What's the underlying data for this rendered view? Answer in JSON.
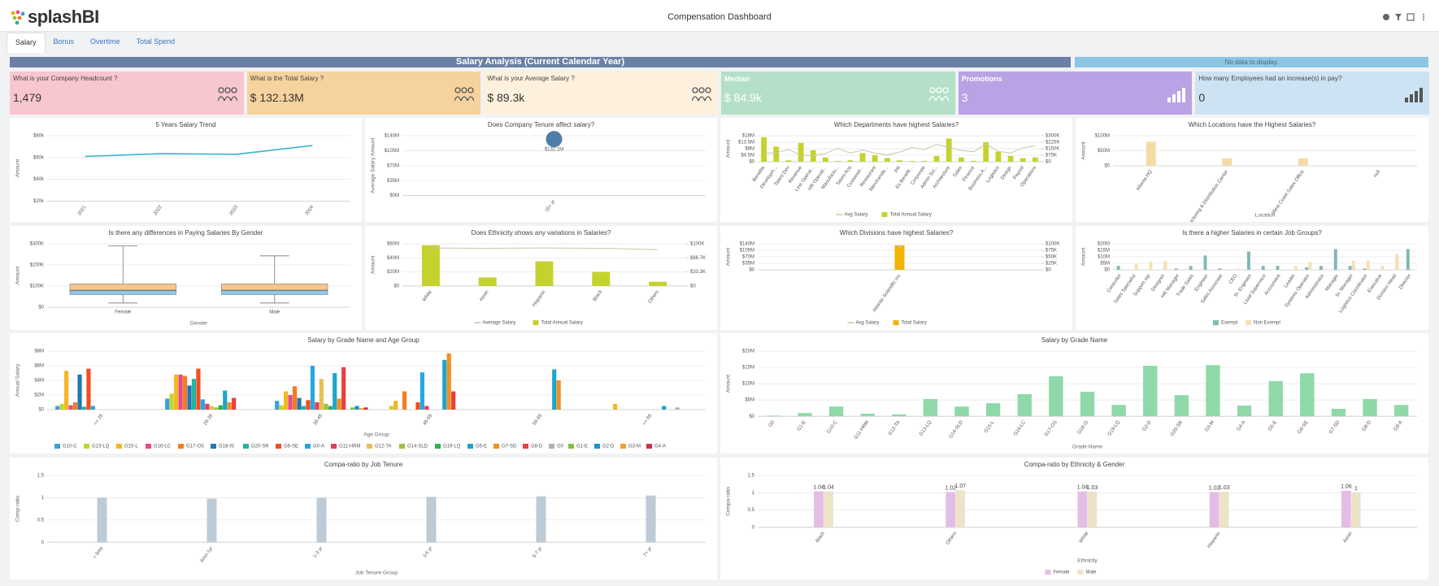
{
  "header": {
    "logo": "splashBI",
    "title": "Compensation Dashboard"
  },
  "tabs": [
    "Salary",
    "Bonus",
    "Overtime",
    "Total Spend"
  ],
  "banner": {
    "title": "Salary Analysis (Current Calendar Year)",
    "note": "No data to display."
  },
  "kpis": [
    {
      "label": "What is your Company Headcount ?",
      "value": "1,479",
      "color": "#f8c6cf"
    },
    {
      "label": "What is the Total Salary ?",
      "value": "$ 132.13M",
      "color": "#f6d39e"
    },
    {
      "label": "What is your Average Salary ?",
      "value": "$ 89.3k",
      "color": "#fdf1dd"
    },
    {
      "label": "Median",
      "value": "$ 84.9k",
      "color": "#b4e0c7"
    },
    {
      "label": "Promotions",
      "value": "3",
      "color": "#b9a3e4"
    },
    {
      "label": "How many Employees had an increase(s) in pay?",
      "value": "0",
      "color": "#cde3f3"
    }
  ],
  "chart_data": [
    {
      "type": "line",
      "title": "5 Years Salary Trend",
      "ylabel": "Amount",
      "categories": [
        "2021",
        "2022",
        "2023",
        "2024"
      ],
      "values": [
        61,
        63.5,
        63,
        71
      ],
      "color": "#3bb3d0",
      "ylim": [
        20,
        80
      ],
      "yticks": [
        {
          "value": 20,
          "label": "$20k"
        },
        {
          "value": 40,
          "label": "$40k"
        },
        {
          "value": 60,
          "label": "$60k"
        },
        {
          "value": 80,
          "label": "$80k"
        }
      ],
      "grid": true
    },
    {
      "type": "bubble",
      "title": "Does Company Tenure affect salary?",
      "ylabel": "Average Salary Amount",
      "categories": [
        "15+ yr"
      ],
      "values": [
        132.13
      ],
      "value_labels": [
        "$132.1M"
      ],
      "color": "#4f7ea8",
      "ylim": [
        0,
        140
      ],
      "yticks": [
        {
          "value": 0,
          "label": "$0M"
        },
        {
          "value": 35,
          "label": "$35M"
        },
        {
          "value": 70,
          "label": "$70M"
        },
        {
          "value": 105,
          "label": "$105M"
        },
        {
          "value": 140,
          "label": "$140M"
        }
      ],
      "grid": true
    },
    {
      "type": "combo",
      "title": "Which Departments have highest Salaries?",
      "ylabel": "Amount",
      "legend": true,
      "categories": [
        "Benefits",
        "Developm...",
        "Talent Dev",
        "Revenue",
        "Line Operat...",
        "HR Operati...",
        "Manufactu...",
        "Talent Acq",
        "Customer...",
        "Restaurant",
        "Merchandis...",
        "PR",
        "Ex Benefit...",
        "Corporate",
        "Admin Sci...",
        "Architecture",
        "Sales",
        "Finance",
        "Business A...",
        "Logistics",
        "Design",
        "Payroll",
        "Operations"
      ],
      "series": [
        {
          "name": "Avg Salary",
          "kind": "line",
          "axis": "y2",
          "color": "#c9c6a6",
          "values": [
            95,
            105,
            140,
            75,
            70,
            95,
            155,
            100,
            135,
            100,
            80,
            110,
            165,
            140,
            200,
            165,
            130,
            115,
            205,
            120,
            100,
            160,
            185
          ]
        },
        {
          "name": "Total Annual Salary",
          "kind": "bar",
          "color": "#c5d22e",
          "values": [
            17,
            10.5,
            1,
            13,
            8,
            3,
            0.5,
            1,
            6,
            4.5,
            2.5,
            1,
            0.5,
            0.5,
            4,
            16,
            3,
            0.6,
            13.5,
            7,
            4,
            2.5,
            3
          ]
        }
      ],
      "ylim": [
        0,
        18
      ],
      "yticks": [
        {
          "value": 0,
          "label": "$0"
        },
        {
          "value": 4.5,
          "label": "$4.5M"
        },
        {
          "value": 9,
          "label": "$9M"
        },
        {
          "value": 13.5,
          "label": "$13.5M"
        },
        {
          "value": 18,
          "label": "$18M"
        }
      ],
      "y2lim": [
        0,
        300
      ],
      "y2ticks": [
        {
          "value": 0,
          "label": "$0"
        },
        {
          "value": 75,
          "label": "$75K"
        },
        {
          "value": 150,
          "label": "$150K"
        },
        {
          "value": 225,
          "label": "$225K"
        },
        {
          "value": 300,
          "label": "$300K"
        }
      ],
      "grid": true
    },
    {
      "type": "bar",
      "title": "Which Locations have the Highest Salaries?",
      "ylabel": "Amount",
      "xlabel": "Location",
      "categories": [
        "Atlanta HQ",
        "Manufacturing & Distribution Center",
        "West Coast Sales Office",
        "null"
      ],
      "values": [
        80,
        25,
        25,
        0
      ],
      "color": "#f3dba6",
      "ylim": [
        0,
        100
      ],
      "yticks": [
        {
          "value": 0,
          "label": "$0"
        },
        {
          "value": 50,
          "label": "$50M"
        },
        {
          "value": 100,
          "label": "$100M"
        }
      ],
      "grid": true
    },
    {
      "type": "box",
      "title": "Is there any differences in Paying Salaries By Gender",
      "ylabel": "Amount",
      "xlabel": "Gender",
      "categories": [
        "Female",
        "Male"
      ],
      "boxes": [
        {
          "min": 20,
          "q1": 60,
          "median": 80,
          "q3": 110,
          "max": 290
        },
        {
          "min": 20,
          "q1": 60,
          "median": 80,
          "q3": 110,
          "max": 243
        }
      ],
      "colors": [
        "#8ec9e8",
        "#f6c68f"
      ],
      "ylim": [
        0,
        300
      ],
      "yticks": [
        {
          "value": 0,
          "label": "$0"
        },
        {
          "value": 100,
          "label": "$100K"
        },
        {
          "value": 200,
          "label": "$200K"
        },
        {
          "value": 300,
          "label": "$300K"
        }
      ],
      "grid": true
    },
    {
      "type": "combo",
      "title": "Does Ethnicity shows any variations in Salaries?",
      "ylabel": "Amount",
      "legend": true,
      "categories": [
        "White",
        "Asian",
        "Hispanic",
        "Black",
        "Others"
      ],
      "series": [
        {
          "name": "Average Salary",
          "kind": "line",
          "axis": "y2",
          "color": "#c9c6a6",
          "values": [
            90,
            89.5,
            90,
            89.5,
            86
          ]
        },
        {
          "name": "Total Annual Salary",
          "kind": "bar",
          "color": "#c5d22e",
          "values": [
            58,
            12,
            35,
            20,
            6
          ]
        }
      ],
      "ylim": [
        0,
        60
      ],
      "yticks": [
        {
          "value": 0,
          "label": "$0"
        },
        {
          "value": 20,
          "label": "$20M"
        },
        {
          "value": 40,
          "label": "$40M"
        },
        {
          "value": 60,
          "label": "$60M"
        }
      ],
      "y2lim": [
        0,
        100
      ],
      "y2ticks": [
        {
          "value": 0,
          "label": "$0"
        },
        {
          "value": 33.3,
          "label": "$33.3K"
        },
        {
          "value": 66.7,
          "label": "$66.7K"
        },
        {
          "value": 100,
          "label": "$100K"
        }
      ],
      "grid": true
    },
    {
      "type": "combo",
      "title": "Which Divisions have highest Salaries?",
      "ylabel": "Amount",
      "legend": true,
      "categories": [
        "Atlantic Scientific Inc"
      ],
      "series": [
        {
          "name": "Avg Salary",
          "kind": "line",
          "axis": "y2",
          "color": "#c9c6a6",
          "values": [
            89.3
          ]
        },
        {
          "name": "Total Salary",
          "kind": "bar",
          "color": "#f0b400",
          "values": [
            132.13
          ]
        }
      ],
      "ylim": [
        0,
        140
      ],
      "yticks": [
        {
          "value": 0,
          "label": "$0"
        },
        {
          "value": 35,
          "label": "$35M"
        },
        {
          "value": 70,
          "label": "$70M"
        },
        {
          "value": 105,
          "label": "$105M"
        },
        {
          "value": 140,
          "label": "$140M"
        }
      ],
      "y2lim": [
        0,
        100
      ],
      "y2ticks": [
        {
          "value": 0,
          "label": "$0"
        },
        {
          "value": 25,
          "label": "$25K"
        },
        {
          "value": 50,
          "label": "$50K"
        },
        {
          "value": 75,
          "label": "$75K"
        },
        {
          "value": 100,
          "label": "$100K"
        }
      ],
      "grid": true
    },
    {
      "type": "bar",
      "title": "Is there a higher Salaries in certain Job Groups?",
      "ylabel": "Amount",
      "legend": true,
      "categories": [
        "Controller",
        "Sales Specialist",
        "Support rep",
        "Designer",
        "HR Manager",
        "Trade Sales",
        "Engineer",
        "Sales Associate",
        "CEO",
        "Sr. Engineer",
        "Lead Supervisor",
        "Accountant",
        "Leader",
        "Systems Operator",
        "Administrator",
        "Manager",
        "Sr. Manager",
        "Logistics Coordinator",
        "Executive",
        "Division Head",
        "Director"
      ],
      "series": [
        {
          "name": "Exempt",
          "color": "#7fb9b5",
          "values": [
            3,
            0,
            0,
            0,
            1,
            3,
            11,
            1,
            0,
            14,
            3,
            3,
            0,
            2,
            3,
            16,
            3,
            1,
            0,
            0,
            16
          ]
        },
        {
          "name": "Non Exempt",
          "color": "#f5dfb5",
          "values": [
            0,
            5,
            6,
            7,
            0,
            0,
            0,
            0,
            1,
            0,
            0,
            0,
            3,
            6,
            0,
            0,
            7,
            7,
            3,
            12,
            0
          ]
        }
      ],
      "ylim": [
        0,
        20
      ],
      "yticks": [
        {
          "value": 0,
          "label": "$0"
        },
        {
          "value": 5,
          "label": "$5M"
        },
        {
          "value": 10,
          "label": "$10M"
        },
        {
          "value": 15,
          "label": "$15M"
        },
        {
          "value": 20,
          "label": "$20M"
        }
      ],
      "grid": true
    },
    {
      "type": "bar",
      "title": "Salary by Grade Name and Age Group",
      "ylabel": "Annual Salary",
      "xlabel": "Age Group",
      "legend": true,
      "categories": [
        "<= 25",
        "26-35",
        "36-45",
        "46-55",
        "56-65",
        ">= 66"
      ],
      "series": [
        {
          "name": "G10-C",
          "color": "#3aa0d8",
          "values": [
            0.5,
            1.5,
            1.2,
            0,
            0,
            0
          ]
        },
        {
          "name": "G13-LQ",
          "color": "#c2d62b",
          "values": [
            0.8,
            2.2,
            0.6,
            0.5,
            0,
            0
          ]
        },
        {
          "name": "G15-L",
          "color": "#f5b623",
          "values": [
            5.3,
            4.8,
            2.5,
            1.2,
            0,
            0.8
          ]
        },
        {
          "name": "G16-LC",
          "color": "#e84a8a",
          "values": [
            0.6,
            4.8,
            2,
            0,
            0,
            0
          ]
        },
        {
          "name": "G17-OS",
          "color": "#f47c20",
          "values": [
            1,
            4.6,
            3.2,
            2.5,
            0,
            0
          ]
        },
        {
          "name": "G18-IS",
          "color": "#1f78b4",
          "values": [
            4.8,
            3.3,
            1.6,
            0,
            0,
            0
          ]
        },
        {
          "name": "G20-SR",
          "color": "#23b5a0",
          "values": [
            0.4,
            4.2,
            0.5,
            0,
            0,
            0
          ]
        },
        {
          "name": "G6-SE",
          "color": "#f04e23",
          "values": [
            5.6,
            5.6,
            1.3,
            1,
            0,
            0
          ]
        },
        {
          "name": "G0-A",
          "color": "#29a7e1",
          "values": [
            0.5,
            1.4,
            6,
            5.1,
            0,
            0
          ]
        },
        {
          "name": "G11-HRM",
          "color": "#e04060",
          "values": [
            0,
            0.8,
            1,
            0.5,
            0,
            0
          ]
        },
        {
          "name": "G12-TA",
          "color": "#e8c050",
          "values": [
            0,
            0.5,
            4.2,
            0,
            0,
            0
          ]
        },
        {
          "name": "G14-SLD",
          "color": "#a0c040",
          "values": [
            0,
            0.3,
            0.8,
            0,
            0,
            0
          ]
        },
        {
          "name": "G19-LQ",
          "color": "#30b050",
          "values": [
            0,
            0.6,
            0.5,
            0,
            0,
            0
          ]
        },
        {
          "name": "G5-E",
          "color": "#1fa5c8",
          "values": [
            0,
            2.6,
            5,
            6.8,
            5.5,
            0.5
          ]
        },
        {
          "name": "G7-SD",
          "color": "#f39020",
          "values": [
            0,
            1,
            1.5,
            7.7,
            4,
            0
          ]
        },
        {
          "name": "G8-D",
          "color": "#e84040",
          "values": [
            0,
            1.6,
            5.8,
            2.5,
            0,
            0
          ]
        },
        {
          "name": "G0",
          "color": "#b0b0b0",
          "values": [
            0,
            0,
            0,
            0,
            0,
            0.3
          ]
        },
        {
          "name": "G1-E",
          "color": "#80c040",
          "values": [
            0,
            0,
            0.3,
            0,
            0,
            0
          ]
        },
        {
          "name": "G2-D",
          "color": "#2090d0",
          "values": [
            0,
            0,
            0.5,
            0,
            0,
            0
          ]
        },
        {
          "name": "G3-M",
          "color": "#f0a030",
          "values": [
            0,
            0,
            0.2,
            0,
            0,
            0
          ]
        },
        {
          "name": "G4-A",
          "color": "#d03050",
          "values": [
            0,
            0,
            0.3,
            0,
            0,
            0
          ]
        }
      ],
      "ylim": [
        0,
        8
      ],
      "yticks": [
        {
          "value": 0,
          "label": "$0"
        },
        {
          "value": 2,
          "label": "$2M"
        },
        {
          "value": 4,
          "label": "$4M"
        },
        {
          "value": 6,
          "label": "$6M"
        },
        {
          "value": 8,
          "label": "$8M"
        }
      ],
      "grid": true
    },
    {
      "type": "bar",
      "title": "Salary by Grade Name",
      "ylabel": "Amount",
      "xlabel": "Grade Name",
      "categories": [
        "G0",
        "G1-E",
        "G10-C",
        "G11-HRM",
        "G12-TA",
        "G13-LQ",
        "G14-SLD",
        "G15-L",
        "G16-LC",
        "G17-OS",
        "G18-IS",
        "G19-LQ",
        "G2-D",
        "G20-SR",
        "G3-M",
        "G4-A",
        "G5-E",
        "G6-SE",
        "G7-SD",
        "G8-D",
        "G9-A"
      ],
      "values": [
        0.2,
        1,
        3,
        0.8,
        0.6,
        5.3,
        3,
        4,
        6.8,
        12.3,
        7.5,
        3.5,
        15.5,
        6.5,
        15.7,
        3.3,
        10.8,
        13.2,
        2.3,
        5.3,
        3.5
      ],
      "color": "#8fd9a8",
      "ylim": [
        0,
        20
      ],
      "yticks": [
        {
          "value": 0,
          "label": "$0"
        },
        {
          "value": 5,
          "label": "$5M"
        },
        {
          "value": 10,
          "label": "$10M"
        },
        {
          "value": 15,
          "label": "$15M"
        },
        {
          "value": 20,
          "label": "$20M"
        }
      ],
      "grid": true
    },
    {
      "type": "bar",
      "title": "Compa-ratio by Job Tenure",
      "ylabel": "Comp-ratio",
      "xlabel": "Job Tenure Group",
      "categories": [
        "< 6mo",
        "6mo-1yr",
        "1-3 yr",
        "3-5 yr",
        "5-7 yr",
        "7+ yr"
      ],
      "values": [
        1,
        0.98,
        1,
        1.02,
        1.03,
        1.05
      ],
      "color": "#bccbd6",
      "ylim": [
        0,
        1.5
      ],
      "yticks": [
        0,
        0.5,
        1,
        1.5
      ],
      "grid": true
    },
    {
      "type": "bar",
      "title": "Compa-ratio by Ethnicity & Gender",
      "ylabel": "Compa-ratio",
      "xlabel": "Ethnicity",
      "legend": true,
      "show_values": true,
      "categories": [
        "Black",
        "Others",
        "White",
        "Hispanic",
        "Asian"
      ],
      "series": [
        {
          "name": "Female",
          "color": "#e3bde6",
          "values": [
            1.04,
            1.02,
            1.04,
            1.02,
            1.06
          ]
        },
        {
          "name": "Male",
          "color": "#ece3c8",
          "values": [
            1.04,
            1.07,
            1.03,
            1.03,
            1
          ]
        }
      ],
      "ylim": [
        0,
        1.5
      ],
      "yticks": [
        0,
        0.5,
        1,
        1.5
      ],
      "grid": true
    }
  ]
}
